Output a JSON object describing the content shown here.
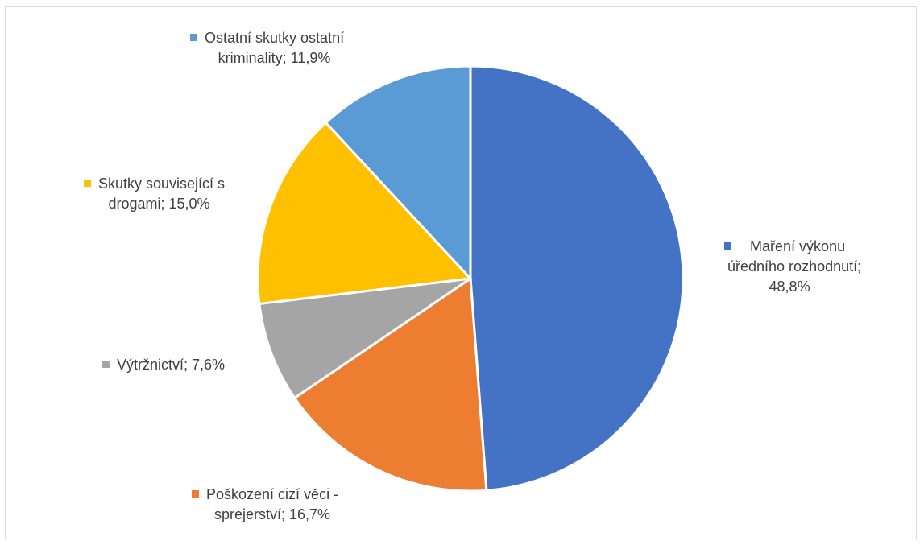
{
  "chart_data": {
    "type": "pie",
    "title": "",
    "start_angle_deg": 0,
    "direction": "clockwise",
    "legend": "none (data labels beside slices)",
    "slices": [
      {
        "label": "Maření výkonu úředního rozhodnutí",
        "value": 48.8,
        "value_label": "48,8%",
        "color": "#4472C4"
      },
      {
        "label": "Poškození cizí věci - sprejerství",
        "value": 16.7,
        "value_label": "16,7%",
        "color": "#ED7D31"
      },
      {
        "label": "Výtržnictví",
        "value": 7.6,
        "value_label": "7,6%",
        "color": "#A5A5A5"
      },
      {
        "label": "Skutky související s drogami",
        "value": 15.0,
        "value_label": "15,0%",
        "color": "#FFC000"
      },
      {
        "label": "Ostatní skutky ostatní kriminality",
        "value": 11.9,
        "value_label": "11,9%",
        "color": "#5B9BD5"
      }
    ]
  },
  "labels": {
    "marení": {
      "lines": [
        "Maření výkonu",
        "úředního rozhodnutí;",
        "48,8%"
      ]
    },
    "poskozeni": {
      "lines": [
        "Poškození cizí věci -",
        "sprejerství; 16,7%"
      ]
    },
    "vytrznictvi": {
      "lines": [
        "Výtržnictví; 7,6%"
      ]
    },
    "drogy": {
      "lines": [
        "Skutky související s",
        "drogami; 15,0%"
      ]
    },
    "ostatni": {
      "lines": [
        "Ostatní skutky ostatní",
        "kriminality; 11,9%"
      ]
    }
  }
}
